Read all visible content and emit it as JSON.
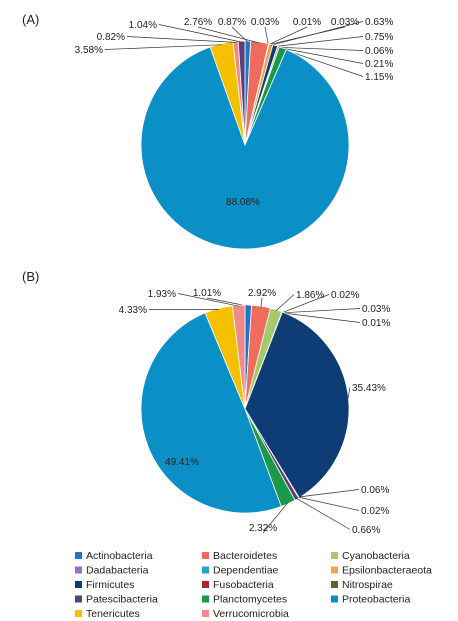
{
  "legend": [
    {
      "label": "Actinobacteria",
      "color": "#1f77c8"
    },
    {
      "label": "Bacteroidetes",
      "color": "#f06b5c"
    },
    {
      "label": "Cyanobacteria",
      "color": "#a6c96a"
    },
    {
      "label": "Dadabacteria",
      "color": "#9b6fbf"
    },
    {
      "label": "Dependentiae",
      "color": "#2e9fd0"
    },
    {
      "label": "Epsilonbacteraeota",
      "color": "#f4a24b"
    },
    {
      "label": "Firmicutes",
      "color": "#0d3d74"
    },
    {
      "label": "Fusobacteria",
      "color": "#a52a2a"
    },
    {
      "label": "Nitrospirae",
      "color": "#4e6b2c"
    },
    {
      "label": "Patescibacteria",
      "color": "#5a3f78"
    },
    {
      "label": "Planctomycetes",
      "color": "#1a9a48"
    },
    {
      "label": "Proteobacteria",
      "color": "#0a8fc6"
    },
    {
      "label": "Tenericutes",
      "color": "#f5c000"
    },
    {
      "label": "Verrucomicrobia",
      "color": "#f08a8a"
    }
  ],
  "chart_data": [
    {
      "type": "pie",
      "panel_label": "(A)",
      "slices": [
        {
          "category": "Actinobacteria",
          "value": 0.87,
          "label": "0.87%"
        },
        {
          "category": "Bacteroidetes",
          "value": 2.76,
          "label": "2.76%"
        },
        {
          "category": "Cyanobacteria",
          "value": 0.03,
          "label": "0.03%"
        },
        {
          "category": "Dadabacteria",
          "value": 0.01,
          "label": "0.01%"
        },
        {
          "category": "Dependentiae",
          "value": 0.03,
          "label": "0.03%"
        },
        {
          "category": "Epsilonbacteraeota",
          "value": 0.63,
          "label": "0.63%"
        },
        {
          "category": "Firmicutes",
          "value": 0.75,
          "label": "0.75%"
        },
        {
          "category": "Fusobacteria",
          "value": 0.06,
          "label": "0.06%"
        },
        {
          "category": "Nitrospirae",
          "value": 0.21,
          "label": "0.21%"
        },
        {
          "category": "Planctomycetes",
          "value": 1.15,
          "label": "1.15%"
        },
        {
          "category": "Proteobacteria",
          "value": 88.08,
          "label": "88.08%"
        },
        {
          "category": "Tenericutes",
          "value": 3.58,
          "label": "3.58%"
        },
        {
          "category": "Verrucomicrobia",
          "value": 0.82,
          "label": "0.82%"
        },
        {
          "category": "Patescibacteria",
          "value": 1.04,
          "label": "1.04%"
        }
      ]
    },
    {
      "type": "pie",
      "panel_label": "(B)",
      "slices": [
        {
          "category": "Actinobacteria",
          "value": 1.01,
          "label": "1.01%"
        },
        {
          "category": "Bacteroidetes",
          "value": 2.92,
          "label": "2.92%"
        },
        {
          "category": "Cyanobacteria",
          "value": 1.86,
          "label": "1.86%"
        },
        {
          "category": "Dadabacteria",
          "value": 0.02,
          "label": "0.02%"
        },
        {
          "category": "Dependentiae",
          "value": 0.03,
          "label": "0.03%"
        },
        {
          "category": "Epsilonbacteraeota",
          "value": 0.01,
          "label": "0.01%"
        },
        {
          "category": "Firmicutes",
          "value": 35.43,
          "label": "35.43%"
        },
        {
          "category": "Fusobacteria",
          "value": 0.06,
          "label": "0.06%"
        },
        {
          "category": "Nitrospirae",
          "value": 0.02,
          "label": "0.02%"
        },
        {
          "category": "Patescibacteria",
          "value": 0.66,
          "label": "0.66%"
        },
        {
          "category": "Planctomycetes",
          "value": 2.32,
          "label": "2.32%"
        },
        {
          "category": "Proteobacteria",
          "value": 49.41,
          "label": "49.41%"
        },
        {
          "category": "Tenericutes",
          "value": 4.33,
          "label": "4.33%"
        },
        {
          "category": "Verrucomicrobia",
          "value": 1.93,
          "label": "1.93%"
        }
      ]
    }
  ]
}
